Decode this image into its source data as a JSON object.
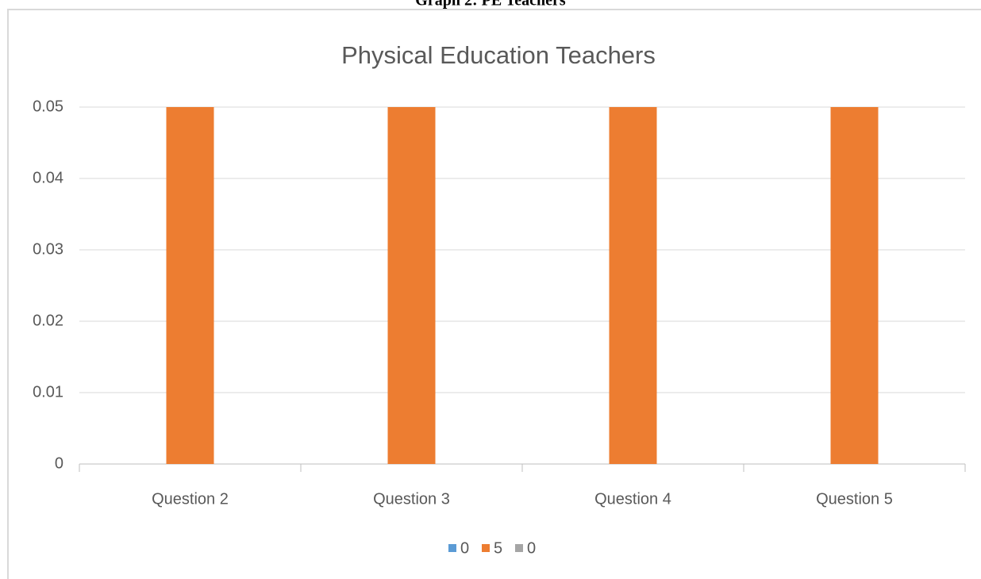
{
  "chart_data": {
    "type": "bar",
    "caption": "Graph 2: PE Teachers",
    "title": "Physical Education Teachers",
    "categories": [
      "Question 2",
      "Question 3",
      "Question 4",
      "Question 5"
    ],
    "series": [
      {
        "name": "0",
        "color": "#5b9bd5",
        "values": [
          0,
          0,
          0,
          0
        ]
      },
      {
        "name": "5",
        "color": "#ed7d31",
        "values": [
          0.05,
          0.05,
          0.05,
          0.05
        ]
      },
      {
        "name": "0",
        "color": "#a5a5a5",
        "values": [
          0,
          0,
          0,
          0
        ]
      }
    ],
    "ylim": [
      0,
      0.05
    ],
    "yticks": [
      0,
      0.01,
      0.02,
      0.03,
      0.04,
      0.05
    ],
    "grid": true,
    "legend": "bottom"
  }
}
